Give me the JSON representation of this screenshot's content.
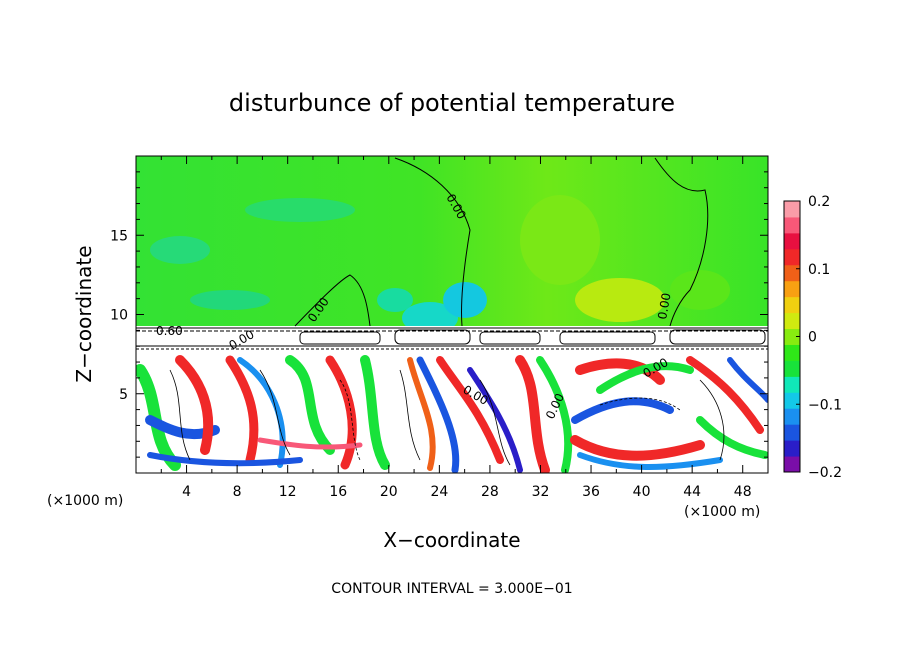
{
  "chart_data": {
    "type": "heatmap",
    "title": "disturbunce of potential temperature",
    "xlabel": "X−coordinate",
    "ylabel": "Z−coordinate",
    "x_unit_left": "(×1000 m)",
    "x_unit_right": "(×1000 m)",
    "footer": "CONTOUR INTERVAL = 3.000E−01",
    "xlim": [
      0,
      50
    ],
    "ylim": [
      0,
      20
    ],
    "x_ticks": [
      4,
      8,
      12,
      16,
      20,
      24,
      28,
      32,
      36,
      40,
      44,
      48
    ],
    "y_ticks": [
      5,
      10,
      15
    ],
    "colorbar": {
      "min": -0.2,
      "max": 0.2,
      "ticks": [
        "0.2",
        "0.1",
        "0",
        "−0.1",
        "−0.2"
      ],
      "tick_values": [
        0.2,
        0.1,
        0,
        -0.1,
        -0.2
      ],
      "colors": [
        "#7a0ea8",
        "#2a1ec8",
        "#1a55e0",
        "#1a90f0",
        "#13c8e8",
        "#10e8b8",
        "#18e23a",
        "#2fe818",
        "#88ec10",
        "#d0ea10",
        "#f0d010",
        "#f8a012",
        "#f06018",
        "#f02828",
        "#e81040",
        "#f85878",
        "#fa9ca8"
      ]
    },
    "contour_labels": [
      "0.00",
      "0.00",
      "0.00",
      "0.60",
      "0.00",
      "0.00",
      "0.00",
      "0.00"
    ]
  }
}
